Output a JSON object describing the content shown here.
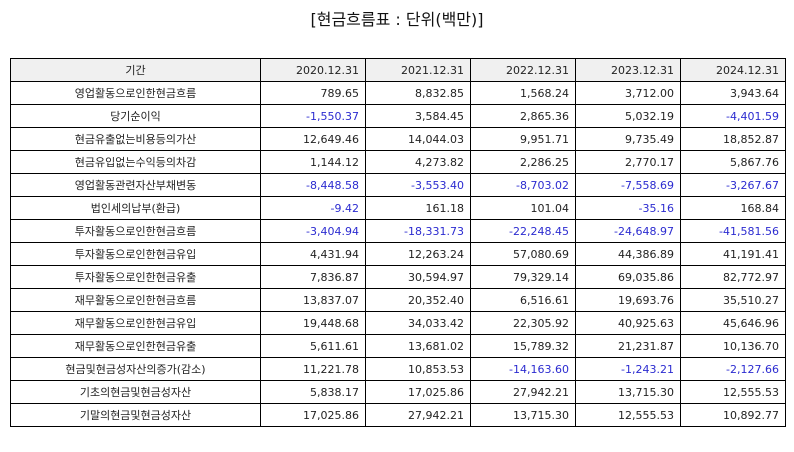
{
  "title": "[현금흐름표 : 단위(백만)]",
  "header": {
    "label_col": "기간",
    "years": [
      "2020.12.31",
      "2021.12.31",
      "2022.12.31",
      "2023.12.31",
      "2024.12.31"
    ]
  },
  "negative_color": "#2b2bd0",
  "rows": [
    {
      "label": "영업활동으로인한현금흐름",
      "values": [
        "789.65",
        "8,832.85",
        "1,568.24",
        "3,712.00",
        "3,943.64"
      ]
    },
    {
      "label": "당기순이익",
      "values": [
        "-1,550.37",
        "3,584.45",
        "2,865.36",
        "5,032.19",
        "-4,401.59"
      ]
    },
    {
      "label": "현금유출없는비용등의가산",
      "values": [
        "12,649.46",
        "14,044.03",
        "9,951.71",
        "9,735.49",
        "18,852.87"
      ]
    },
    {
      "label": "현금유입없는수익등의차감",
      "values": [
        "1,144.12",
        "4,273.82",
        "2,286.25",
        "2,770.17",
        "5,867.76"
      ]
    },
    {
      "label": "영업활동관련자산부채변동",
      "values": [
        "-8,448.58",
        "-3,553.40",
        "-8,703.02",
        "-7,558.69",
        "-3,267.67"
      ]
    },
    {
      "label": "법인세의납부(환급)",
      "values": [
        "-9.42",
        "161.18",
        "101.04",
        "-35.16",
        "168.84"
      ]
    },
    {
      "label": "투자활동으로인한현금흐름",
      "values": [
        "-3,404.94",
        "-18,331.73",
        "-22,248.45",
        "-24,648.97",
        "-41,581.56"
      ]
    },
    {
      "label": "투자활동으로인한현금유입",
      "values": [
        "4,431.94",
        "12,263.24",
        "57,080.69",
        "44,386.89",
        "41,191.41"
      ]
    },
    {
      "label": "투자활동으로인한현금유출",
      "values": [
        "7,836.87",
        "30,594.97",
        "79,329.14",
        "69,035.86",
        "82,772.97"
      ]
    },
    {
      "label": "재무활동으로인한현금흐름",
      "values": [
        "13,837.07",
        "20,352.40",
        "6,516.61",
        "19,693.76",
        "35,510.27"
      ]
    },
    {
      "label": "재무활동으로인한현금유입",
      "values": [
        "19,448.68",
        "34,033.42",
        "22,305.92",
        "40,925.63",
        "45,646.96"
      ]
    },
    {
      "label": "재무활동으로인한현금유출",
      "values": [
        "5,611.61",
        "13,681.02",
        "15,789.32",
        "21,231.87",
        "10,136.70"
      ]
    },
    {
      "label": "현금및현금성자산의증가(감소)",
      "values": [
        "11,221.78",
        "10,853.53",
        "-14,163.60",
        "-1,243.21",
        "-2,127.66"
      ]
    },
    {
      "label": "기초의현금및현금성자산",
      "values": [
        "5,838.17",
        "17,025.86",
        "27,942.21",
        "13,715.30",
        "12,555.53"
      ]
    },
    {
      "label": "기말의현금및현금성자산",
      "values": [
        "17,025.86",
        "27,942.21",
        "13,715.30",
        "12,555.53",
        "10,892.77"
      ]
    }
  ]
}
